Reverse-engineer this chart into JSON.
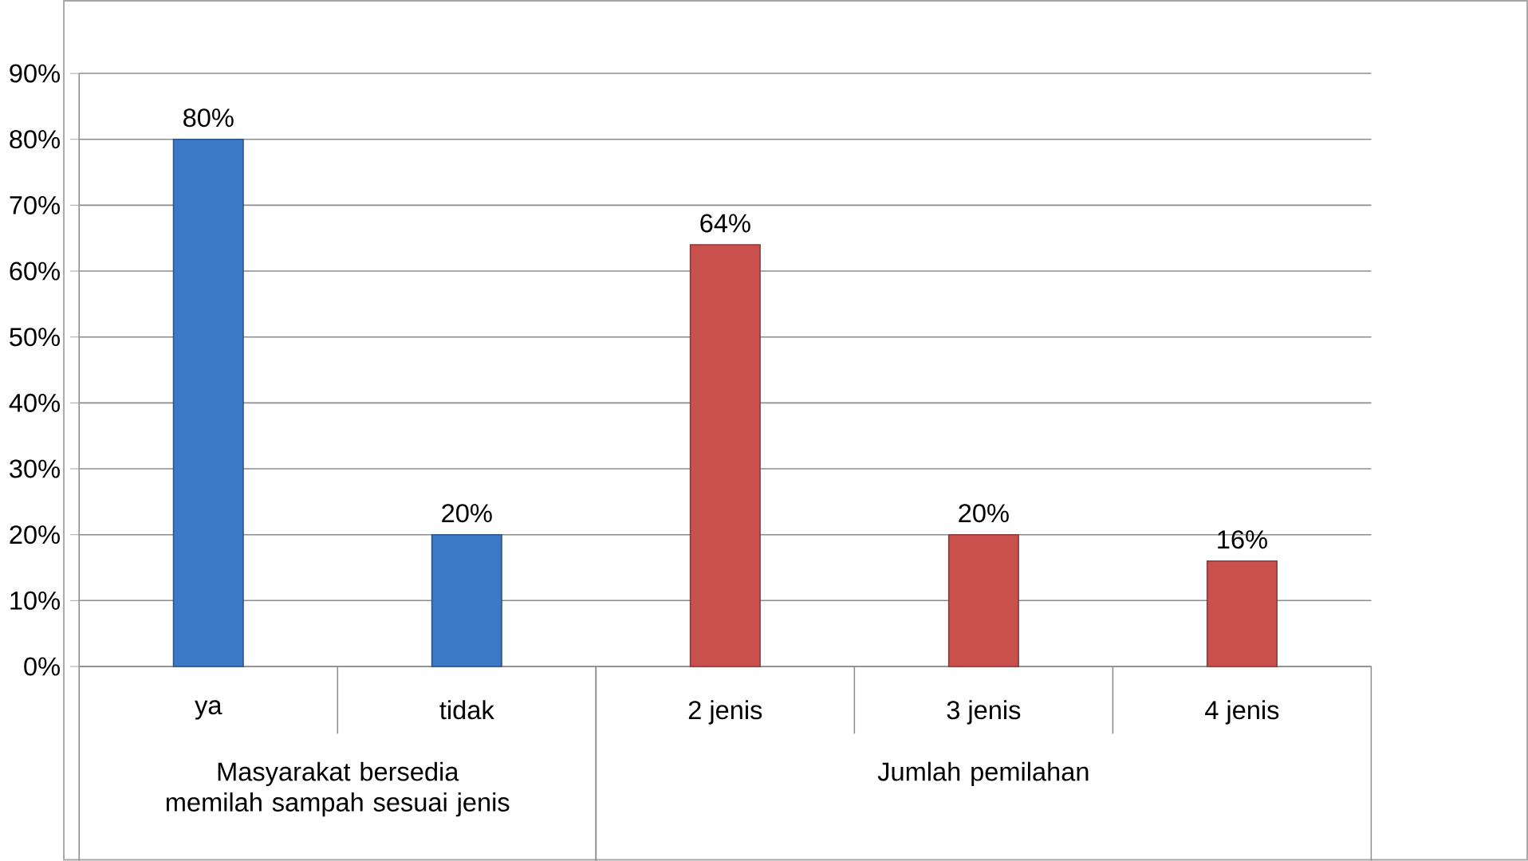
{
  "chart_data": {
    "type": "bar",
    "categories": [
      "ya",
      "tidak",
      "2 jenis",
      "3 jenis",
      "4 jenis"
    ],
    "values": [
      80,
      20,
      64,
      20,
      16
    ],
    "value_labels": [
      "80%",
      "20%",
      "64%",
      "20%",
      "16%"
    ],
    "colors": [
      "#3b78c5",
      "#3b78c5",
      "#c9504d",
      "#c9504d",
      "#c9504d"
    ],
    "annotations": [
      "Masyarakat bersedia memilah sampah sesuai jenis",
      "Jumlah pemilahan"
    ],
    "ylim": [
      0,
      90
    ],
    "yticks": [
      {
        "value": 0,
        "label": "0%"
      },
      {
        "value": 10,
        "label": "10%"
      },
      {
        "value": 20,
        "label": "20%"
      },
      {
        "value": 30,
        "label": "30%"
      },
      {
        "value": 40,
        "label": "40%"
      },
      {
        "value": 50,
        "label": "50%"
      },
      {
        "value": 60,
        "label": "60%"
      },
      {
        "value": 70,
        "label": "70%"
      },
      {
        "value": 80,
        "label": "80%"
      },
      {
        "value": 90,
        "label": "90%"
      }
    ],
    "grid": "y"
  }
}
